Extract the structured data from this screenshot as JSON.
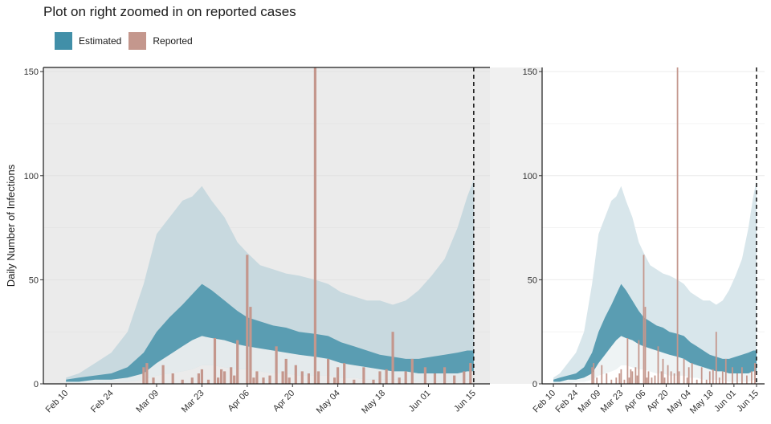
{
  "chart_data": {
    "type": "area",
    "title": "Plot on right zoomed in on reported cases",
    "ylabel": "Daily Number of Infections",
    "xlabel": "",
    "legend": {
      "placement": "top-left",
      "entries": [
        "Estimated",
        "Reported"
      ]
    },
    "colors": {
      "estimated_dark": "#5a9db2",
      "estimated_light_left": "#c8d9df",
      "estimated_light_right": "#d8e6eb",
      "outer_light": "#e6ecee",
      "reported": "#c4978d",
      "panel_bg": "#ebebeb",
      "grid": "#dddddd"
    },
    "x_axis": {
      "type": "date",
      "start": "2020-02-03",
      "end": "2020-06-20",
      "ticks": [
        "Feb 10",
        "Feb 24",
        "Mar 09",
        "Mar 23",
        "Apr 06",
        "Apr 20",
        "May 04",
        "May 18",
        "Jun 01",
        "Jun 15"
      ]
    },
    "y_axis": {
      "ylim": [
        0,
        152
      ],
      "ticks": [
        0,
        50,
        100,
        150
      ]
    },
    "forecast_date": "2020-06-15",
    "estimated_series": {
      "dates": [
        "2020-02-10",
        "2020-02-14",
        "2020-02-19",
        "2020-02-24",
        "2020-02-29",
        "2020-03-05",
        "2020-03-09",
        "2020-03-13",
        "2020-03-17",
        "2020-03-20",
        "2020-03-23",
        "2020-03-26",
        "2020-03-30",
        "2020-04-03",
        "2020-04-06",
        "2020-04-10",
        "2020-04-14",
        "2020-04-18",
        "2020-04-22",
        "2020-04-27",
        "2020-05-01",
        "2020-05-05",
        "2020-05-09",
        "2020-05-13",
        "2020-05-17",
        "2020-05-21",
        "2020-05-25",
        "2020-05-29",
        "2020-06-02",
        "2020-06-06",
        "2020-06-10",
        "2020-06-13",
        "2020-06-15"
      ],
      "upper_90": [
        3,
        5,
        10,
        15,
        25,
        48,
        72,
        80,
        88,
        90,
        95,
        88,
        80,
        68,
        63,
        57,
        55,
        53,
        52,
        50,
        48,
        44,
        42,
        40,
        40,
        38,
        40,
        45,
        52,
        60,
        75,
        90,
        98
      ],
      "upper_50": [
        2,
        3,
        4,
        5,
        8,
        15,
        25,
        32,
        38,
        43,
        48,
        45,
        40,
        35,
        32,
        30,
        28,
        27,
        25,
        24,
        23,
        20,
        18,
        16,
        14,
        13,
        12,
        12,
        13,
        14,
        15,
        16,
        16
      ],
      "lower_50": [
        1,
        1,
        2,
        2,
        3,
        5,
        10,
        14,
        18,
        21,
        23,
        22,
        21,
        19,
        18,
        17,
        16,
        15,
        14,
        13,
        12,
        10,
        9,
        8,
        7,
        6,
        6,
        5,
        5,
        5,
        5,
        6,
        6
      ],
      "lower_90": [
        0,
        0,
        0,
        1,
        1,
        2,
        4,
        5,
        6,
        7,
        9,
        9,
        8,
        7,
        7,
        6,
        5,
        5,
        4,
        4,
        4,
        3,
        3,
        2,
        2,
        2,
        2,
        1,
        1,
        1,
        1,
        2,
        2
      ]
    },
    "reported_series": {
      "dates": [
        "2020-03-05",
        "2020-03-06",
        "2020-03-08",
        "2020-03-11",
        "2020-03-14",
        "2020-03-17",
        "2020-03-20",
        "2020-03-22",
        "2020-03-23",
        "2020-03-25",
        "2020-03-27",
        "2020-03-28",
        "2020-03-29",
        "2020-03-30",
        "2020-04-01",
        "2020-04-02",
        "2020-04-03",
        "2020-04-06",
        "2020-04-07",
        "2020-04-08",
        "2020-04-09",
        "2020-04-11",
        "2020-04-13",
        "2020-04-15",
        "2020-04-17",
        "2020-04-18",
        "2020-04-19",
        "2020-04-21",
        "2020-04-23",
        "2020-04-25",
        "2020-04-27",
        "2020-04-28",
        "2020-05-01",
        "2020-05-03",
        "2020-05-04",
        "2020-05-06",
        "2020-05-09",
        "2020-05-12",
        "2020-05-15",
        "2020-05-17",
        "2020-05-19",
        "2020-05-21",
        "2020-05-23",
        "2020-05-25",
        "2020-05-27",
        "2020-05-31",
        "2020-06-03",
        "2020-06-06",
        "2020-06-09",
        "2020-06-12",
        "2020-06-14"
      ],
      "values": [
        8,
        10,
        3,
        9,
        5,
        2,
        3,
        5,
        7,
        2,
        22,
        3,
        7,
        6,
        8,
        4,
        21,
        62,
        37,
        3,
        6,
        3,
        4,
        18,
        6,
        12,
        3,
        9,
        6,
        5,
        152,
        6,
        12,
        3,
        8,
        10,
        2,
        8,
        2,
        6,
        7,
        25,
        3,
        6,
        12,
        8,
        5,
        8,
        4,
        6,
        10
      ]
    },
    "panels": [
      {
        "name": "main",
        "background": "grey",
        "y_ticks": [
          0,
          50,
          100,
          150
        ]
      },
      {
        "name": "zoomed",
        "background": "white",
        "y_ticks": [
          0,
          50,
          100,
          150
        ]
      }
    ]
  }
}
